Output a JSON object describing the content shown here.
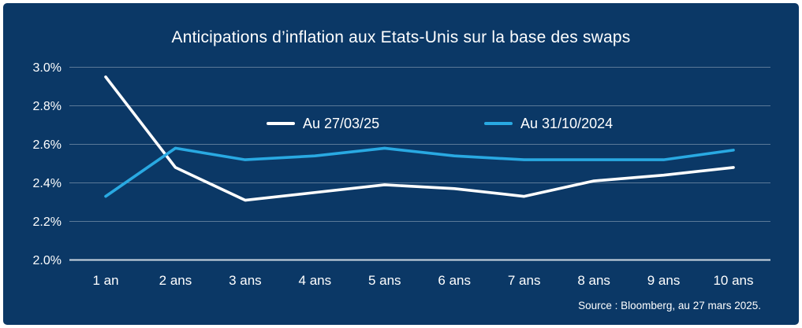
{
  "title": "Anticipations d’inflation aux Etats-Unis sur la base des swaps",
  "source": "Source : Bloomberg, au 27 mars 2025.",
  "legend": [
    {
      "label": "Au 27/03/25",
      "color": "#ffffff"
    },
    {
      "label": "Au 31/10/2024",
      "color": "#29a9e2"
    }
  ],
  "colors": {
    "background": "#0b3866",
    "frame": "#ffffff",
    "grid": "rgba(255,255,255,0.33)",
    "axis": "#ccd8e2",
    "text": "#ffffff"
  },
  "chart_data": {
    "type": "line",
    "title": "Anticipations d’inflation aux Etats-Unis sur la base des swaps",
    "categories": [
      "1 an",
      "2 ans",
      "3 ans",
      "4 ans",
      "5 ans",
      "6 ans",
      "7 ans",
      "8 ans",
      "9 ans",
      "10 ans"
    ],
    "series": [
      {
        "name": "Au 27/03/25",
        "color": "#ffffff",
        "values": [
          2.95,
          2.48,
          2.31,
          2.35,
          2.39,
          2.37,
          2.33,
          2.41,
          2.44,
          2.48
        ]
      },
      {
        "name": "Au 31/10/2024",
        "color": "#29a9e2",
        "values": [
          2.33,
          2.58,
          2.52,
          2.54,
          2.58,
          2.54,
          2.52,
          2.52,
          2.52,
          2.57
        ]
      }
    ],
    "ylim": [
      2.0,
      3.0
    ],
    "yticks": [
      "3.0%",
      "2.8%",
      "2.6%",
      "2.4%",
      "2.2%",
      "2.0%"
    ],
    "xlabel": "",
    "ylabel": "",
    "grid": "horizontal",
    "legend_position": "top-center-inside"
  }
}
